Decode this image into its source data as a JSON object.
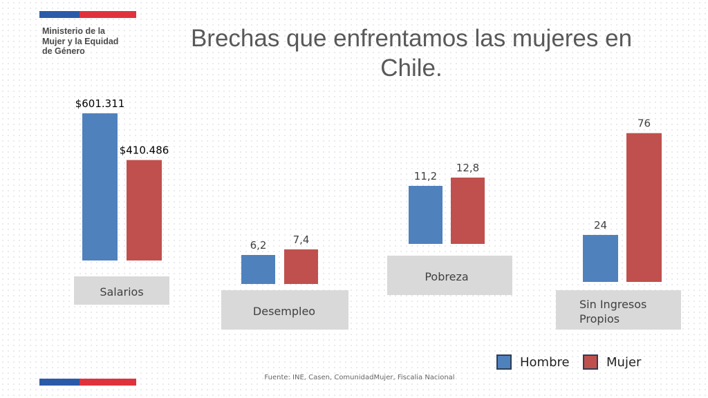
{
  "header": {
    "ministry_lines": [
      "Ministerio de la",
      "Mujer y la Equidad",
      "de Género"
    ],
    "title_lines": [
      "Brechas que enfrentamos las mujeres en",
      "Chile."
    ]
  },
  "colors": {
    "hombre": "#4f81bd",
    "mujer": "#c0504d",
    "flag_blue": "#2b5aa8",
    "flag_red": "#e0323c",
    "category_box": "#d9d9d9"
  },
  "chart_data": [
    {
      "type": "bar",
      "category": "Salarios",
      "series": [
        {
          "name": "Hombre",
          "values": [
            601311
          ],
          "label": "$601.311"
        },
        {
          "name": "Mujer",
          "values": [
            410486
          ],
          "label": "$410.486"
        }
      ]
    },
    {
      "type": "bar",
      "category": "Desempleo",
      "series": [
        {
          "name": "Hombre",
          "values": [
            6.2
          ],
          "label": "6,2"
        },
        {
          "name": "Mujer",
          "values": [
            7.4
          ],
          "label": "7,4"
        }
      ]
    },
    {
      "type": "bar",
      "category": "Pobreza",
      "series": [
        {
          "name": "Hombre",
          "values": [
            11.2
          ],
          "label": "11,2"
        },
        {
          "name": "Mujer",
          "values": [
            12.8
          ],
          "label": "12,8"
        }
      ]
    },
    {
      "type": "bar",
      "category": "Sin Ingresos Propios",
      "series": [
        {
          "name": "Hombre",
          "values": [
            24
          ],
          "label": "24"
        },
        {
          "name": "Mujer",
          "values": [
            76
          ],
          "label": "76"
        }
      ]
    }
  ],
  "legend": {
    "hombre": "Hombre",
    "mujer": "Mujer"
  },
  "source": "Fuente: INE, Casen, ComunidadMujer, Fiscalia Nacional"
}
